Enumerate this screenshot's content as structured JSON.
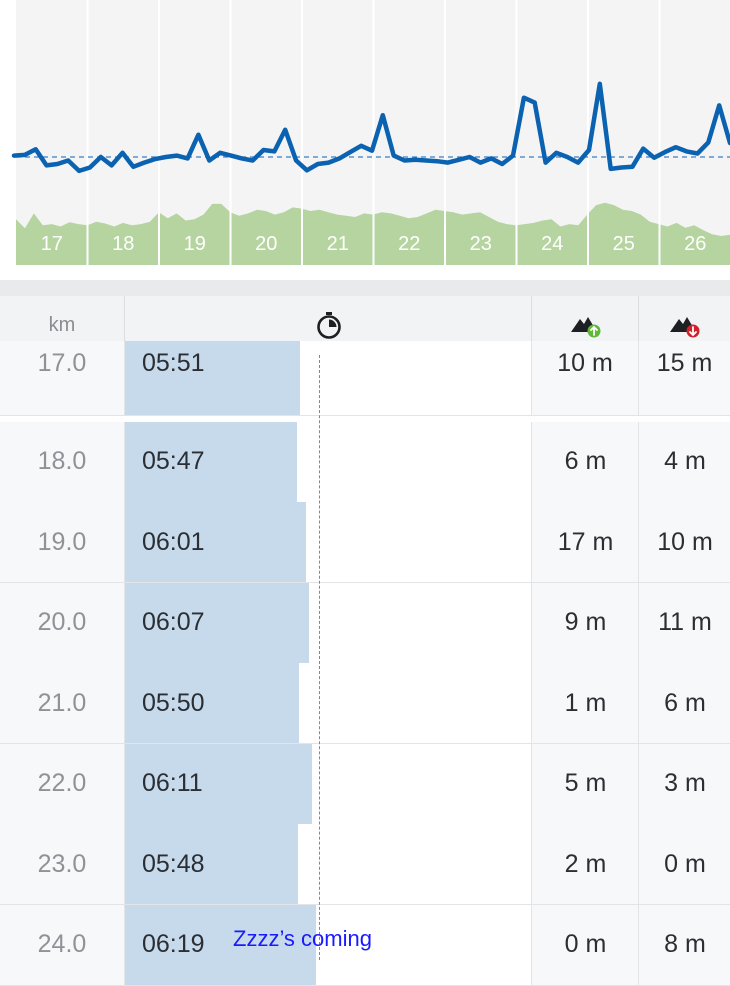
{
  "chart_data": {
    "type": "line",
    "x_ticks": [
      "17",
      "18",
      "19",
      "20",
      "21",
      "22",
      "23",
      "24",
      "25",
      "26"
    ],
    "series": [
      {
        "pace_relative": [
          0.62,
          0.63,
          0.71,
          0.48,
          0.5,
          0.55,
          0.4,
          0.45,
          0.6,
          0.48,
          0.66,
          0.46,
          0.52,
          0.57,
          0.6,
          0.62,
          0.58,
          0.92,
          0.55,
          0.66,
          0.62,
          0.58,
          0.55,
          0.7,
          0.68,
          0.99,
          0.55,
          0.41,
          0.5,
          0.52,
          0.58,
          0.67,
          0.76,
          0.69,
          1.2,
          0.62,
          0.55,
          0.56,
          0.55,
          0.54,
          0.52,
          0.56,
          0.6,
          0.52,
          0.58,
          0.5,
          0.62,
          1.45,
          1.38,
          0.52,
          0.66,
          0.6,
          0.52,
          0.7,
          1.65,
          0.43,
          0.45,
          0.46,
          0.72,
          0.59,
          0.67,
          0.74,
          0.68,
          0.65,
          0.81,
          1.34,
          0.8
        ]
      },
      {
        "elevation_relative": [
          0.7,
          0.55,
          0.8,
          0.6,
          0.62,
          0.58,
          0.65,
          0.62,
          0.6,
          0.66,
          0.63,
          0.58,
          0.64,
          0.6,
          0.62,
          0.66,
          0.82,
          0.72,
          0.8,
          0.68,
          0.7,
          0.78,
          0.96,
          0.96,
          0.82,
          0.76,
          0.8,
          0.86,
          0.84,
          0.78,
          0.82,
          0.9,
          0.88,
          0.84,
          0.86,
          0.82,
          0.78,
          0.76,
          0.74,
          0.8,
          0.78,
          0.82,
          0.8,
          0.76,
          0.72,
          0.74,
          0.8,
          0.86,
          0.84,
          0.82,
          0.78,
          0.8,
          0.82,
          0.74,
          0.66,
          0.62,
          0.6,
          0.62,
          0.64,
          0.68,
          0.7,
          0.58,
          0.62,
          0.6,
          0.78,
          0.94,
          0.98,
          0.94,
          0.86,
          0.84,
          0.78,
          0.66,
          0.62,
          0.58,
          0.64,
          0.56,
          0.6,
          0.52,
          0.45,
          0.42,
          0.44
        ]
      }
    ],
    "colors": {
      "pace_line": "#0a62b0",
      "elevation_fill": "#b5d4a0",
      "avg_line": "#3b7fc4",
      "grid": "#e0e0e0"
    }
  },
  "table": {
    "headers": {
      "km": "km",
      "pace_icon": "stopwatch-icon",
      "ascent_icon": "ascent-icon",
      "descent_icon": "descent-icon"
    },
    "rows": [
      {
        "km": "17.0",
        "pace": "05:51",
        "pace_fraction": 0.873,
        "ascent": "10 m",
        "descent": "15 m"
      },
      {
        "km": "18.0",
        "pace": "05:47",
        "pace_fraction": 0.86,
        "ascent": "6 m",
        "descent": "4 m"
      },
      {
        "km": "19.0",
        "pace": "06:01",
        "pace_fraction": 0.905,
        "ascent": "17 m",
        "descent": "10 m"
      },
      {
        "km": "20.0",
        "pace": "06:07",
        "pace_fraction": 0.92,
        "ascent": "9 m",
        "descent": "11 m"
      },
      {
        "km": "21.0",
        "pace": "05:50",
        "pace_fraction": 0.87,
        "ascent": "1 m",
        "descent": "6 m"
      },
      {
        "km": "22.0",
        "pace": "06:11",
        "pace_fraction": 0.933,
        "ascent": "5 m",
        "descent": "3 m"
      },
      {
        "km": "23.0",
        "pace": "05:48",
        "pace_fraction": 0.863,
        "ascent": "2 m",
        "descent": "0 m"
      },
      {
        "km": "24.0",
        "pace": "06:19",
        "pace_fraction": 0.957,
        "ascent": "0 m",
        "descent": "8 m"
      }
    ],
    "colors": {
      "pace_bar": "#c7daec",
      "avg_line": "#5f8fbd",
      "ascent_badge": "#5fb838",
      "descent_badge": "#d0222d"
    }
  },
  "caption": "Zzzz’s coming"
}
